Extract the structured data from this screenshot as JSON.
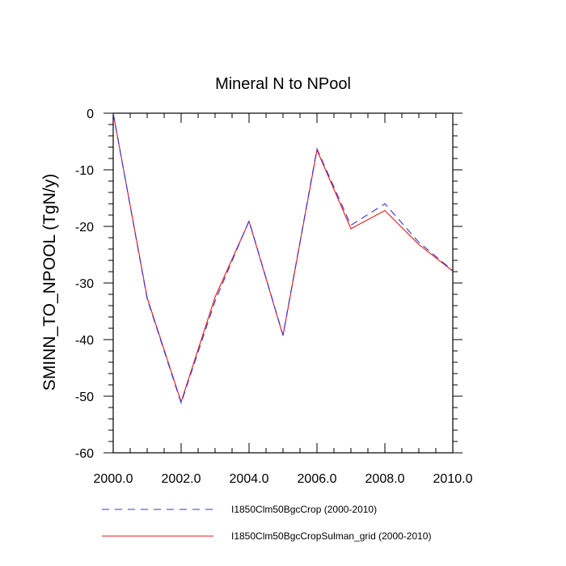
{
  "chart_data": {
    "type": "line",
    "title": "Mineral N to NPool",
    "xlabel": "",
    "ylabel": "SMINN_TO_NPOOL  (TgN/y)",
    "xlim": [
      2000,
      2010
    ],
    "ylim": [
      -60,
      0
    ],
    "x_ticks": [
      2000,
      2002,
      2004,
      2006,
      2008,
      2010
    ],
    "x_tick_labels": [
      "2000.0",
      "2002.0",
      "2004.0",
      "2006.0",
      "2008.0",
      "2010.0"
    ],
    "y_ticks": [
      0,
      -10,
      -20,
      -30,
      -40,
      -50,
      -60
    ],
    "y_tick_labels": [
      "0",
      "-10",
      "-20",
      "-30",
      "-40",
      "-50",
      "-60"
    ],
    "grid": false,
    "legend_position": "bottom",
    "x": [
      2000,
      2001,
      2002,
      2003,
      2004,
      2005,
      2006,
      2007,
      2008,
      2009,
      2010
    ],
    "series": [
      {
        "name": "I1850Clm50BgcCrop (2000-2010)",
        "color": "#3333dd",
        "style": "dashed",
        "values": [
          0,
          -32.8,
          -51.2,
          -33.2,
          -19.0,
          -39.2,
          -6.3,
          -19.8,
          -16.0,
          -22.8,
          -27.8
        ]
      },
      {
        "name": "I1850Clm50BgcCropSulman_grid (2000-2010)",
        "color": "#ee1111",
        "style": "solid",
        "values": [
          0,
          -32.6,
          -51.0,
          -32.5,
          -19.1,
          -39.3,
          -6.5,
          -20.4,
          -17.2,
          -23.2,
          -27.9
        ]
      }
    ]
  }
}
